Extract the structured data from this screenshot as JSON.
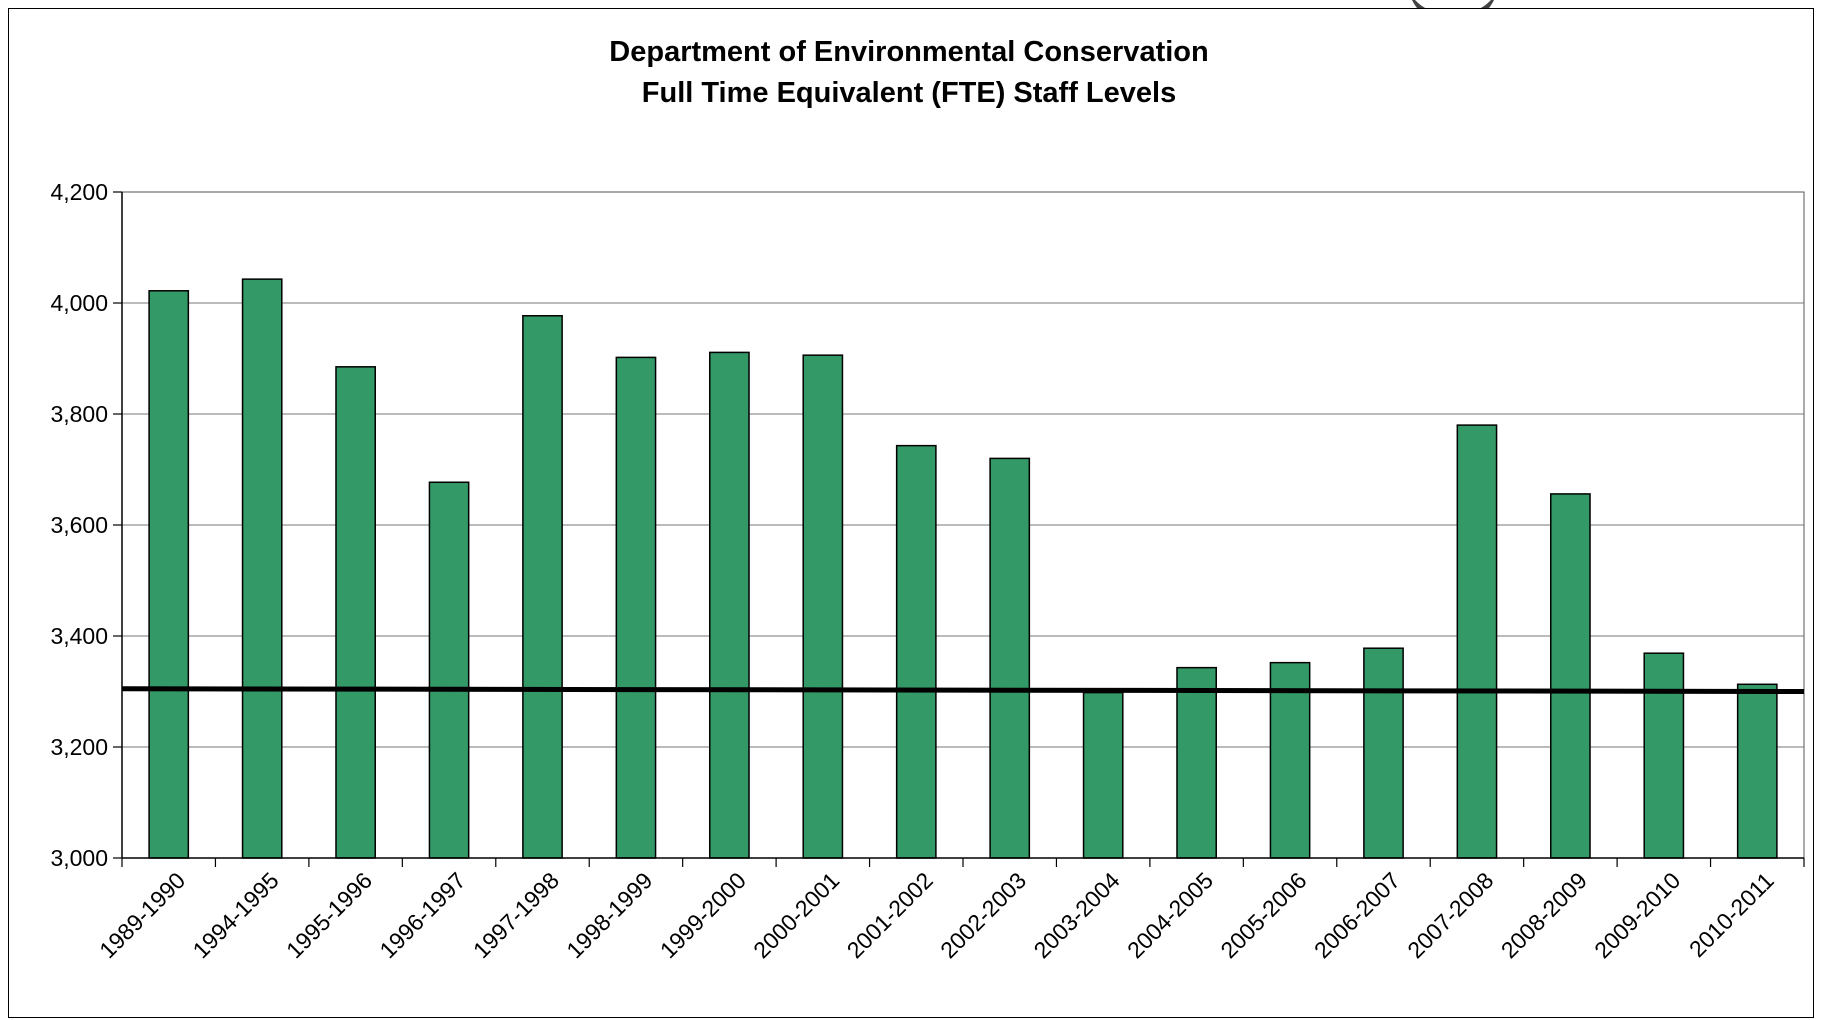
{
  "chart_data": {
    "type": "bar",
    "title_lines": [
      "Department of Environmental Conservation",
      "Full Time Equivalent (FTE) Staff Levels"
    ],
    "categories": [
      "1989-1990",
      "1994-1995",
      "1995-1996",
      "1996-1997",
      "1997-1998",
      "1998-1999",
      "1999-2000",
      "2000-2001",
      "2001-2002",
      "2002-2003",
      "2003-2004",
      "2004-2005",
      "2005-2006",
      "2006-2007",
      "2007-2008",
      "2008-2009",
      "2009-2010",
      "2010-2011"
    ],
    "values": [
      4022,
      4043,
      3885,
      3677,
      3977,
      3902,
      3911,
      3906,
      3743,
      3720,
      3298,
      3343,
      3352,
      3378,
      3780,
      3656,
      3369,
      3313
    ],
    "ylim": [
      3000,
      4200
    ],
    "y_ticks": [
      3000,
      3200,
      3400,
      3600,
      3800,
      4000,
      4200
    ],
    "y_tick_labels": [
      "3,000",
      "3,200",
      "3,400",
      "3,600",
      "3,800",
      "4,000",
      "4,200"
    ],
    "reference_line": {
      "start": 3305,
      "end": 3300,
      "color": "#000000"
    },
    "grid": true,
    "bar_color": "#339966",
    "bar_edge_color": "#000000"
  }
}
